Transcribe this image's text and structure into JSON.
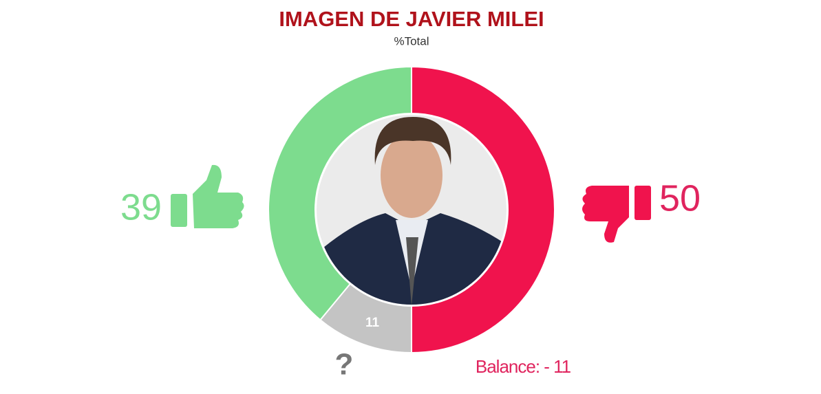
{
  "chart_data": {
    "type": "donut",
    "title": "IMAGEN DE JAVIER MILEI",
    "subtitle": "%Total",
    "values": [
      50,
      11,
      39
    ],
    "colors": [
      "#f0134d",
      "#c4c4c4",
      "#7ddc8e"
    ],
    "unknown_marker": "?",
    "annotation": "Balance: - 11"
  }
}
